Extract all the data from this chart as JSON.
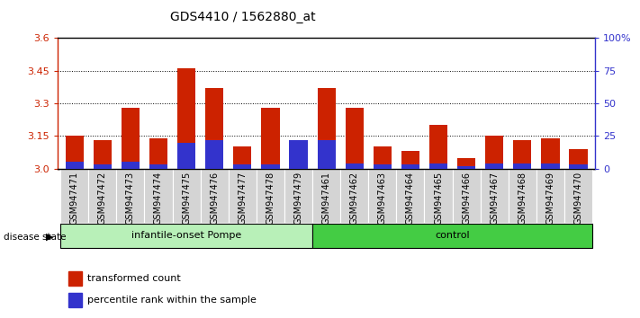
{
  "title": "GDS4410 / 1562880_at",
  "samples": [
    "GSM947471",
    "GSM947472",
    "GSM947473",
    "GSM947474",
    "GSM947475",
    "GSM947476",
    "GSM947477",
    "GSM947478",
    "GSM947479",
    "GSM947461",
    "GSM947462",
    "GSM947463",
    "GSM947464",
    "GSM947465",
    "GSM947466",
    "GSM947467",
    "GSM947468",
    "GSM947469",
    "GSM947470"
  ],
  "red_values": [
    3.15,
    3.13,
    3.28,
    3.14,
    3.46,
    3.37,
    3.1,
    3.28,
    3.09,
    3.37,
    3.28,
    3.1,
    3.08,
    3.2,
    3.05,
    3.15,
    3.13,
    3.14,
    3.09
  ],
  "blue_pct": [
    5,
    3,
    5,
    3,
    20,
    22,
    3,
    3,
    22,
    22,
    4,
    3,
    3,
    4,
    2,
    4,
    4,
    4,
    3
  ],
  "base": 3.0,
  "ymin": 3.0,
  "ymax": 3.6,
  "yticks_left": [
    3.0,
    3.15,
    3.3,
    3.45,
    3.6
  ],
  "yticks_right": [
    0,
    25,
    50,
    75,
    100
  ],
  "group1_label": "infantile-onset Pompe",
  "group2_label": "control",
  "group1_count": 9,
  "group2_count": 10,
  "red_color": "#cc2200",
  "blue_color": "#3333cc",
  "legend_red": "transformed count",
  "legend_blue": "percentile rank within the sample",
  "disease_state_label": "disease state",
  "group1_bg": "#b8f0b8",
  "group2_bg": "#44cc44",
  "title_fontsize": 10,
  "tick_fontsize": 7
}
